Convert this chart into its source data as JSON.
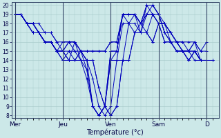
{
  "xlabel": "Température (°c)",
  "background_color": "#cce8e8",
  "line_color": "#0000bb",
  "grid_color": "#aacccc",
  "tick_color": "#000044",
  "ylim": [
    8,
    20
  ],
  "yticks": [
    8,
    9,
    10,
    11,
    12,
    13,
    14,
    15,
    16,
    17,
    18,
    19,
    20
  ],
  "x_day_labels": [
    "Mer",
    "Jeu",
    "Ven",
    "Sam",
    "D"
  ],
  "x_day_positions": [
    0,
    8,
    16,
    24,
    32
  ],
  "xlim": [
    -0.5,
    34
  ],
  "series": [
    {
      "start": 0,
      "values": [
        19,
        19,
        18,
        18,
        17,
        16,
        16,
        15,
        16,
        16,
        16,
        15,
        14,
        9,
        8,
        9,
        14,
        15,
        19,
        19,
        19,
        18,
        20,
        20,
        19,
        17,
        16,
        16,
        15,
        15,
        16,
        14,
        14
      ]
    },
    {
      "start": 0,
      "values": [
        19,
        19,
        18,
        18,
        17,
        16,
        16,
        15,
        15,
        16,
        15,
        15,
        13,
        9,
        8,
        9,
        15,
        15,
        19,
        19,
        19,
        18,
        20,
        20,
        19,
        17,
        16,
        15,
        15,
        15,
        15,
        14,
        14
      ]
    },
    {
      "start": 0,
      "values": [
        19,
        19,
        18,
        17,
        17,
        16,
        16,
        15,
        15,
        15,
        15,
        14,
        13,
        9,
        8,
        9,
        15,
        15,
        19,
        18,
        19,
        17,
        20,
        19,
        18,
        16,
        16,
        15,
        15,
        15,
        15,
        14,
        14
      ]
    },
    {
      "start": 0,
      "values": [
        19,
        19,
        18,
        17,
        17,
        16,
        16,
        15,
        14,
        15,
        14,
        14,
        12,
        9,
        8,
        9,
        14,
        14,
        18,
        18,
        18,
        17,
        19,
        19,
        18,
        16,
        16,
        15,
        15,
        14,
        15,
        14,
        14
      ]
    },
    {
      "start": 1,
      "values": [
        19,
        18,
        17,
        17,
        16,
        16,
        15,
        14,
        14,
        16,
        14,
        14,
        12,
        9,
        8,
        9,
        14,
        14,
        18,
        17,
        18,
        17,
        19,
        18,
        18,
        16,
        15,
        15,
        15,
        14,
        14,
        14
      ]
    },
    {
      "start": 2,
      "values": [
        18,
        18,
        17,
        16,
        16,
        15,
        15,
        14,
        14,
        15,
        14,
        14,
        11,
        9,
        8,
        9,
        14,
        14,
        17,
        17,
        17,
        16,
        18,
        18,
        17,
        16,
        15,
        14,
        15,
        14,
        14,
        14
      ]
    },
    {
      "start": 2,
      "values": [
        18,
        18,
        17,
        16,
        16,
        15,
        15,
        14,
        14,
        15,
        14,
        14,
        11,
        9,
        8,
        9,
        14,
        14,
        17,
        17,
        17,
        16,
        18,
        18,
        17,
        16,
        15,
        14,
        15,
        14,
        14,
        14
      ]
    },
    {
      "start": 0,
      "values": [
        19,
        19,
        18,
        18,
        18,
        17,
        17,
        16,
        15,
        16,
        16,
        15,
        15,
        15,
        15,
        15,
        16,
        16,
        19,
        19,
        19,
        18,
        19,
        20,
        19,
        18,
        17,
        16,
        16,
        16,
        16,
        15,
        16
      ]
    },
    {
      "start": 0,
      "values": [
        19,
        19,
        18,
        18,
        17,
        17,
        17,
        16,
        16,
        16,
        16,
        15,
        15,
        15,
        15,
        15,
        16,
        16,
        19,
        19,
        19,
        18,
        19,
        19,
        19,
        17,
        17,
        16,
        16,
        15,
        16,
        15,
        15
      ]
    }
  ]
}
